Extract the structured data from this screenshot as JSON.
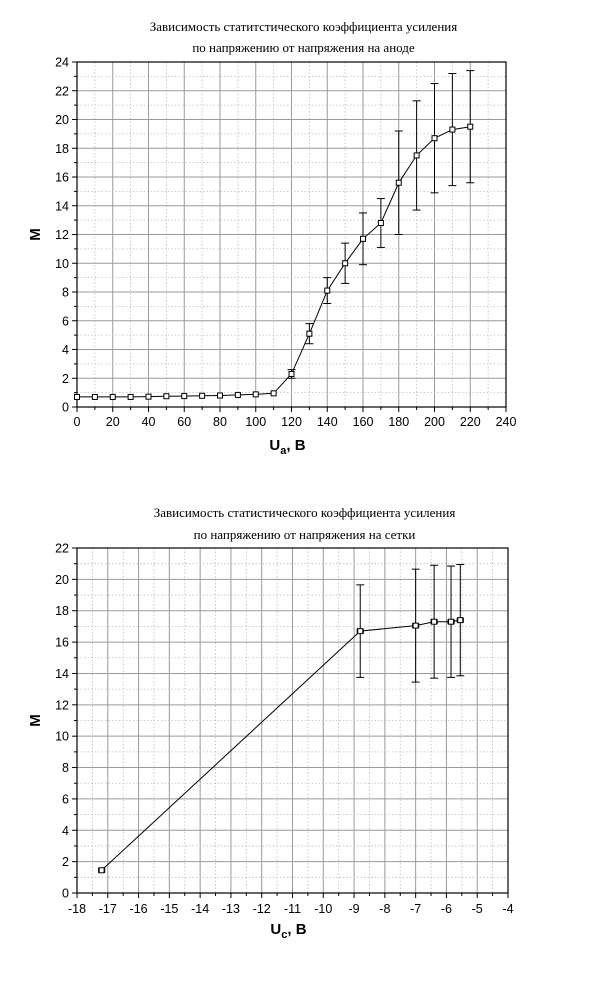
{
  "chart_data": [
    {
      "type": "line",
      "title": "Зависимость статитстического коэффициента усиления",
      "subtitle": "по напряжению от напряжения на аноде",
      "xlabel": {
        "main": "U",
        "sub": "a",
        "rest": ", В"
      },
      "ylabel": "M",
      "xlim": [
        0,
        240
      ],
      "ylim": [
        0,
        24
      ],
      "xticks": [
        0,
        20,
        40,
        60,
        80,
        100,
        120,
        140,
        160,
        180,
        200,
        220,
        240
      ],
      "yticks": [
        0,
        2,
        4,
        6,
        8,
        10,
        12,
        14,
        16,
        18,
        20,
        22,
        24
      ],
      "xtick_labels": [
        "0",
        "20",
        "40",
        "60",
        "80",
        "100",
        "120",
        "140",
        "160",
        "180",
        "200",
        "220",
        "240"
      ],
      "ytick_labels": [
        "0",
        "2",
        "4",
        "6",
        "8",
        "10",
        "12",
        "14",
        "16",
        "18",
        "20",
        "22",
        "24"
      ],
      "grid": true,
      "series": [
        {
          "x": [
            0,
            10,
            20,
            30,
            40,
            50,
            60,
            70,
            80,
            90,
            100,
            110,
            120,
            130,
            140,
            150,
            160,
            170,
            180,
            190,
            200,
            210,
            220
          ],
          "y": [
            0.7,
            0.7,
            0.7,
            0.7,
            0.72,
            0.75,
            0.76,
            0.78,
            0.8,
            0.84,
            0.88,
            0.95,
            2.3,
            5.1,
            8.1,
            10.0,
            11.7,
            12.8,
            15.6,
            17.5,
            18.7,
            19.3,
            19.5
          ],
          "yerr": [
            0.15,
            0.15,
            0.15,
            0.15,
            0.15,
            0.15,
            0.15,
            0.15,
            0.15,
            0.15,
            0.15,
            0.15,
            0.3,
            0.7,
            0.9,
            1.4,
            1.8,
            1.7,
            3.6,
            3.8,
            3.8,
            3.9,
            3.9
          ],
          "xerr": 1.0
        }
      ]
    },
    {
      "type": "line",
      "title": "Зависимость статистического коэффициента усиления",
      "subtitle": "по напряжению от напряжения на сетки",
      "xlabel": {
        "main": "U",
        "sub": "c",
        "rest": ", В"
      },
      "ylabel": "M",
      "xlim": [
        -18,
        -4
      ],
      "ylim": [
        0,
        22
      ],
      "xticks": [
        -18,
        -17,
        -16,
        -15,
        -14,
        -13,
        -12,
        -11,
        -10,
        -9,
        -8,
        -7,
        -6,
        -5,
        -4
      ],
      "yticks": [
        0,
        2,
        4,
        6,
        8,
        10,
        12,
        14,
        16,
        18,
        20,
        22
      ],
      "xtick_labels": [
        "-18",
        "-17",
        "-16",
        "-15",
        "-14",
        "-13",
        "-12",
        "-11",
        "-10",
        "-9",
        "-8",
        "-7",
        "-6",
        "-5",
        "-4"
      ],
      "ytick_labels": [
        "0",
        "2",
        "4",
        "6",
        "8",
        "10",
        "12",
        "14",
        "16",
        "18",
        "20",
        "22"
      ],
      "grid": true,
      "series": [
        {
          "x": [
            -17.2,
            -8.8,
            -7.0,
            -6.4,
            -5.85,
            -5.55
          ],
          "y": [
            1.45,
            16.7,
            17.05,
            17.3,
            17.3,
            17.4
          ],
          "yerr": [
            0.15,
            2.95,
            3.6,
            3.6,
            3.55,
            3.55
          ],
          "xerr": 0.1
        }
      ]
    }
  ]
}
